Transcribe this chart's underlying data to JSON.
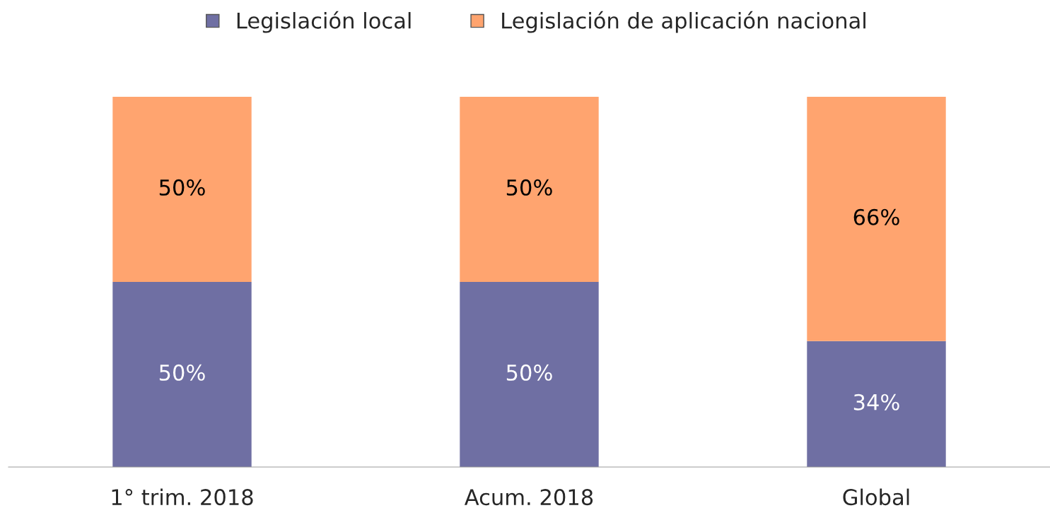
{
  "chart_data": {
    "type": "bar",
    "stacked": true,
    "categories": [
      "1° trim. 2018",
      "Acum. 2018",
      "Global"
    ],
    "series": [
      {
        "name": "Legislación local",
        "color": "#6f6fa3",
        "values": [
          50,
          50,
          34
        ],
        "value_labels": [
          "50%",
          "50%",
          "34%"
        ]
      },
      {
        "name": "Legislación de aplicación nacional",
        "color": "#ffa46f",
        "values": [
          50,
          50,
          66
        ],
        "value_labels": [
          "50%",
          "50%",
          "66%"
        ]
      }
    ],
    "legend": "top",
    "tick_labels": "x",
    "grid": false
  }
}
